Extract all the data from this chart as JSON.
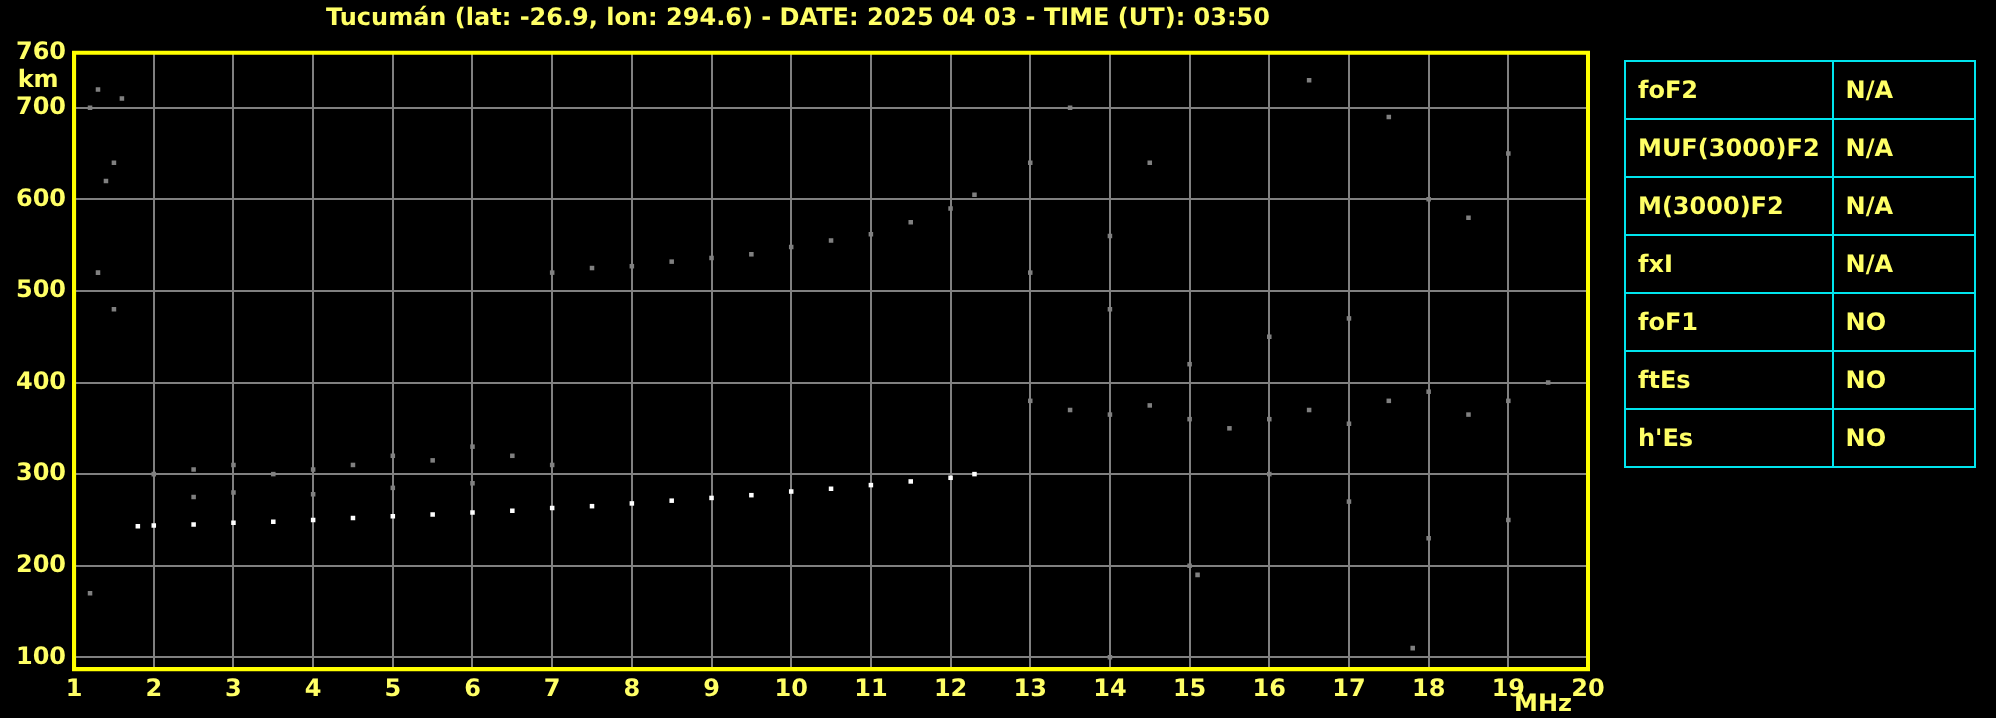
{
  "chart_data": [
    {
      "type": "scatter",
      "title": "Tucumán (lat: -26.9, lon: 294.6) - DATE: 2025 04 03 - TIME (UT): 03:50",
      "xlabel": "MHz",
      "ylabel": "km",
      "xlim": [
        1,
        20
      ],
      "xticks": [
        1,
        2,
        3,
        4,
        5,
        6,
        7,
        8,
        9,
        10,
        11,
        12,
        13,
        14,
        15,
        16,
        17,
        18,
        19,
        20
      ],
      "ylim": [
        87,
        760
      ],
      "yticks": [
        100,
        200,
        300,
        400,
        500,
        600,
        700,
        760
      ],
      "grid": true,
      "legend": false,
      "marker": "square",
      "series": [
        {
          "color": "#ffffff",
          "x": [
            1.8,
            2,
            2.5,
            3,
            3.5,
            4,
            4.5,
            5,
            5.5,
            6,
            6.5,
            7,
            7.5,
            8,
            8.5,
            9,
            9.5,
            10,
            10.5,
            11,
            11.5,
            12,
            12.3
          ],
          "values": [
            243,
            244,
            245,
            247,
            248,
            250,
            252,
            254,
            256,
            258,
            260,
            263,
            265,
            268,
            271,
            274,
            277,
            281,
            284,
            288,
            292,
            296,
            300
          ]
        },
        {
          "color": "#808080",
          "x": [
            7,
            7.5,
            8,
            8.5,
            9,
            9.5,
            10,
            10.5,
            11,
            11.5,
            12,
            12.3,
            2,
            2.5,
            3,
            3.5,
            4,
            4.5,
            5,
            5.5,
            6,
            6.5,
            7,
            2.5,
            3,
            4,
            5,
            6,
            13,
            13.5,
            14,
            14.5,
            15,
            15.5,
            16,
            16.5,
            17,
            17.5,
            18,
            18.5,
            19,
            19.5,
            13,
            14,
            15,
            16,
            17,
            18,
            19,
            13.5,
            14.5,
            16.5,
            17.5,
            18.5,
            15,
            15.1,
            17.8,
            14,
            16,
            19,
            13,
            14,
            17,
            18,
            1.2,
            1.3,
            1.6,
            1.3,
            1.5,
            1.2,
            1.5,
            1.4
          ],
          "values": [
            520,
            525,
            527,
            532,
            536,
            540,
            548,
            555,
            562,
            575,
            590,
            605,
            300,
            305,
            310,
            300,
            305,
            310,
            320,
            315,
            330,
            320,
            310,
            275,
            280,
            278,
            285,
            290,
            380,
            370,
            365,
            375,
            360,
            350,
            360,
            370,
            355,
            380,
            390,
            365,
            380,
            400,
            520,
            480,
            420,
            450,
            470,
            600,
            650,
            700,
            640,
            730,
            690,
            580,
            200,
            190,
            110,
            100,
            300,
            250,
            640,
            560,
            270,
            230,
            700,
            720,
            710,
            520,
            480,
            170,
            640,
            620
          ]
        }
      ]
    },
    {
      "type": "other",
      "annotations": [
        "foF2",
        "N/A",
        "MUF(3000)F2",
        "N/A",
        "M(3000)F2",
        "N/A",
        "fxI",
        "N/A",
        "foF1",
        "NO",
        "ftEs",
        "NO",
        "h'Es",
        "NO"
      ]
    }
  ]
}
